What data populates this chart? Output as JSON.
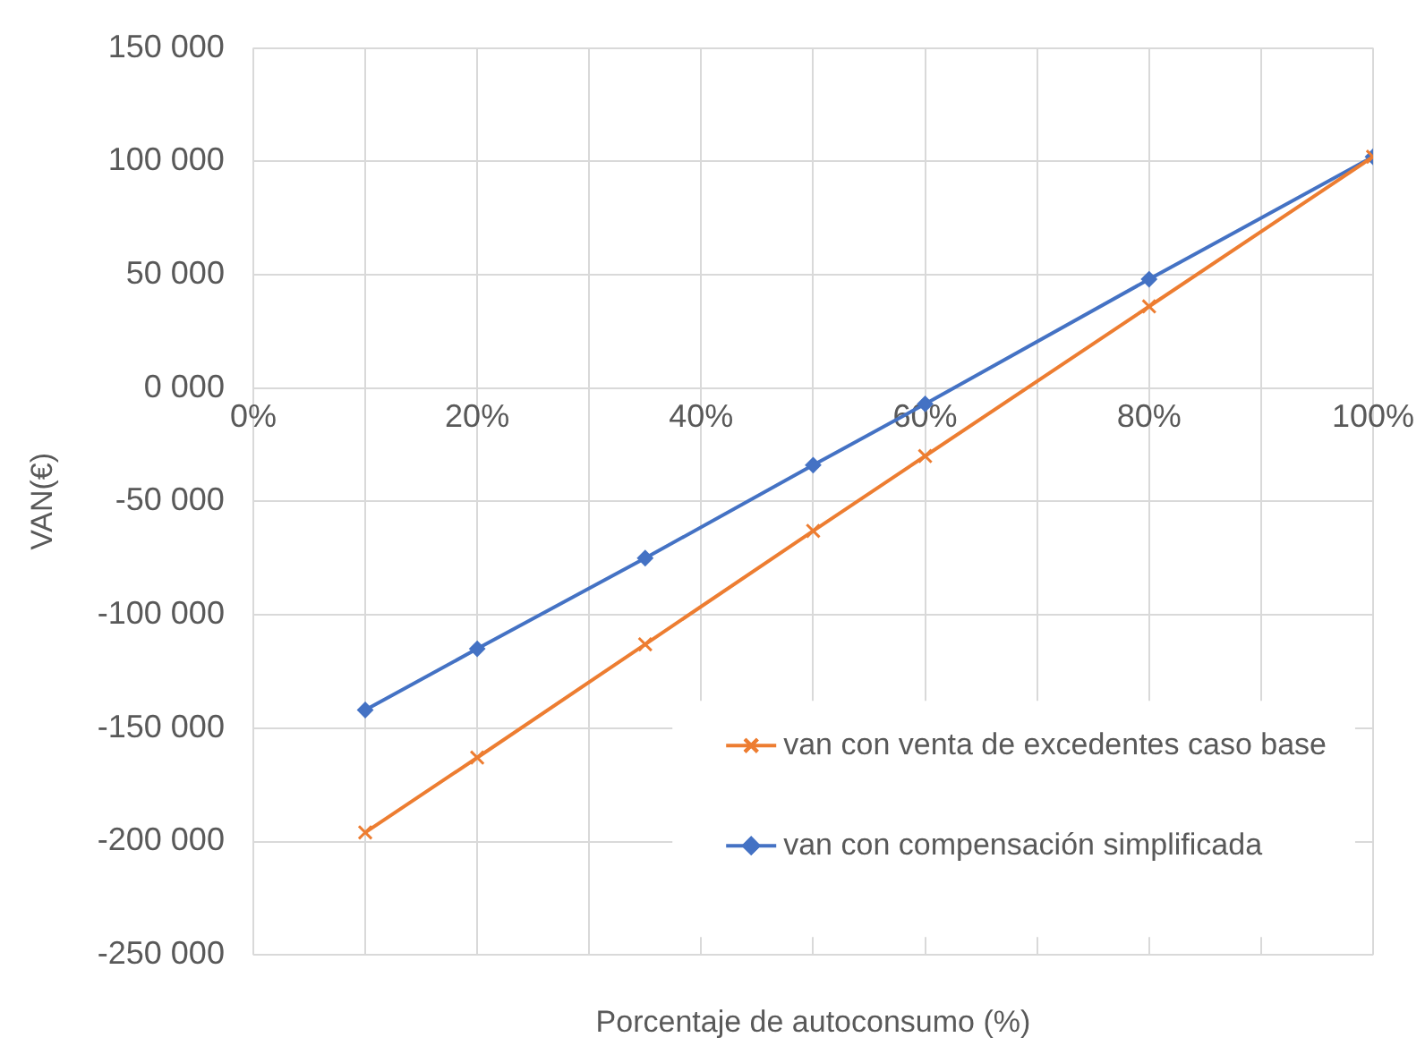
{
  "chart_data": {
    "type": "line",
    "xlabel": "Porcentaje de autoconsumo (%)",
    "ylabel": "VAN(€)",
    "x": [
      10,
      20,
      35,
      50,
      60,
      80,
      100
    ],
    "series": [
      {
        "name": "van con venta de excedentes caso base",
        "color": "#ed7d31",
        "marker": "cross",
        "values": [
          -196000,
          -163000,
          -113000,
          -63000,
          -30000,
          36000,
          102000
        ]
      },
      {
        "name": "van con compensación simplificada",
        "color": "#4472c4",
        "marker": "diamond",
        "values": [
          -142000,
          -115000,
          -75000,
          -34000,
          -7000,
          48000,
          102000
        ]
      }
    ],
    "xlim": [
      0,
      100
    ],
    "xticks": [
      {
        "value": 0,
        "label": "0%"
      },
      {
        "value": 10,
        "label": null
      },
      {
        "value": 20,
        "label": "20%"
      },
      {
        "value": 30,
        "label": null
      },
      {
        "value": 40,
        "label": "40%"
      },
      {
        "value": 50,
        "label": null
      },
      {
        "value": 60,
        "label": "60%"
      },
      {
        "value": 70,
        "label": null
      },
      {
        "value": 80,
        "label": "80%"
      },
      {
        "value": 90,
        "label": null
      },
      {
        "value": 100,
        "label": "100%"
      }
    ],
    "ylim": [
      -250000,
      150000
    ],
    "yticks": [
      {
        "value": -250000,
        "label": "-250 000"
      },
      {
        "value": -200000,
        "label": "-200 000"
      },
      {
        "value": -150000,
        "label": "-150 000"
      },
      {
        "value": -100000,
        "label": "-100 000"
      },
      {
        "value": -50000,
        "label": "-50 000"
      },
      {
        "value": 0,
        "label": "0 000"
      },
      {
        "value": 50000,
        "label": "50 000"
      },
      {
        "value": 100000,
        "label": "100 000"
      },
      {
        "value": 150000,
        "label": "150 000"
      }
    ],
    "grid": true,
    "legend": "bottom right",
    "line_style": "solid"
  }
}
